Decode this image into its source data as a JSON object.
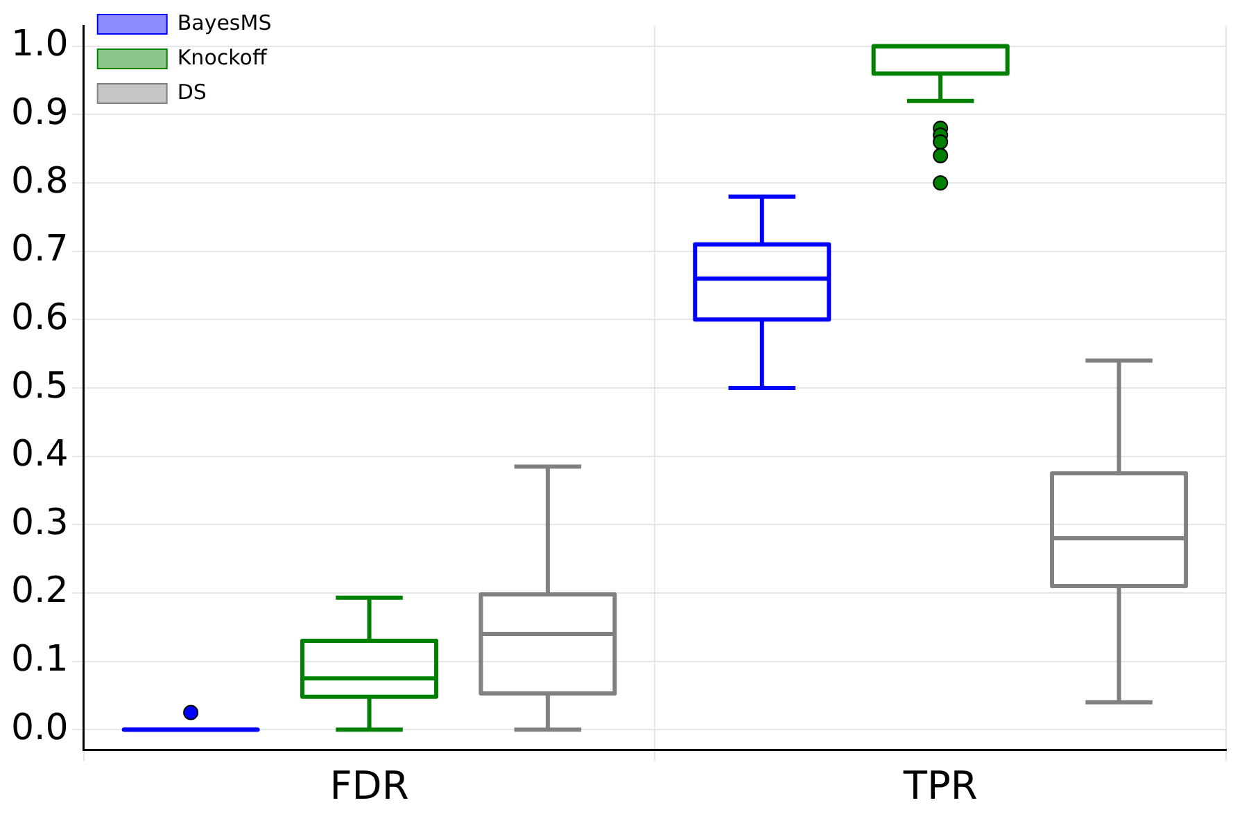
{
  "chart_data": {
    "type": "box",
    "categories": [
      "FDR",
      "TPR"
    ],
    "series": [
      {
        "name": "BayesMS",
        "color": "#0000ff",
        "boxes": [
          {
            "low": 0,
            "q1": 0,
            "median": 0,
            "q3": 0,
            "high": 0,
            "outliers": [
              0.025
            ]
          },
          {
            "low": 0.5,
            "q1": 0.6,
            "median": 0.66,
            "q3": 0.71,
            "high": 0.78
          }
        ]
      },
      {
        "name": "Knockoff",
        "color": "#008000",
        "boxes": [
          {
            "low": 0,
            "q1": 0.048,
            "median": 0.075,
            "q3": 0.13,
            "high": 0.193
          },
          {
            "low": 0.92,
            "q1": 0.96,
            "median": 1.0,
            "q3": 1.0,
            "high": 1.0,
            "outliers": [
              0.88,
              0.87,
              0.86,
              0.84,
              0.8
            ]
          }
        ]
      },
      {
        "name": "DS",
        "color": "#808080",
        "boxes": [
          {
            "low": 0,
            "q1": 0.053,
            "median": 0.14,
            "q3": 0.198,
            "high": 0.385
          },
          {
            "low": 0.04,
            "q1": 0.21,
            "median": 0.28,
            "q3": 0.375,
            "high": 0.54
          }
        ]
      }
    ],
    "ylim": [
      -0.03,
      1.03
    ],
    "yticks": [
      {
        "value": 0,
        "label": "0.0"
      },
      {
        "value": 0.1,
        "label": "0.1"
      },
      {
        "value": 0.2,
        "label": "0.2"
      },
      {
        "value": 0.3,
        "label": "0.3"
      },
      {
        "value": 0.4,
        "label": "0.4"
      },
      {
        "value": 0.5,
        "label": "0.5"
      },
      {
        "value": 0.6,
        "label": "0.6"
      },
      {
        "value": 0.7,
        "label": "0.7"
      },
      {
        "value": 0.8,
        "label": "0.8"
      },
      {
        "value": 0.9,
        "label": "0.9"
      },
      {
        "value": 1,
        "label": "1.0"
      }
    ],
    "grid": true,
    "legend": "top left"
  }
}
